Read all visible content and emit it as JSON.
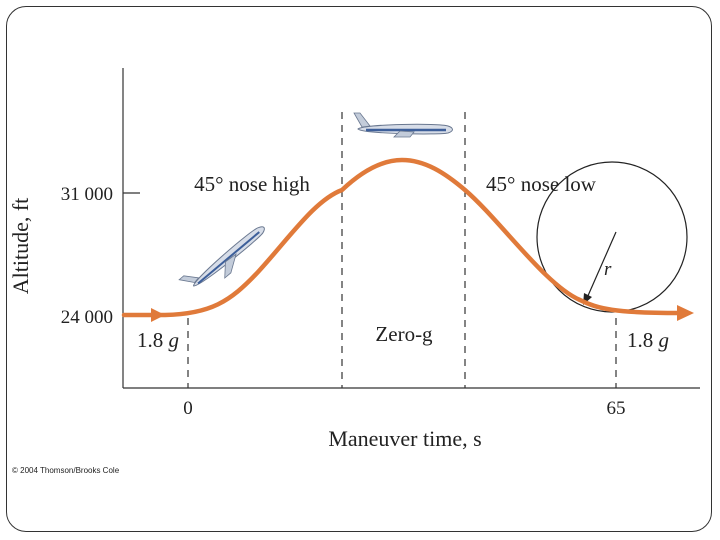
{
  "figure": {
    "ylabel": "Altitude, ft",
    "xlabel": "Maneuver time, s",
    "y_ticks": [
      "31 000",
      "24 000"
    ],
    "x_ticks": [
      "0",
      "65"
    ],
    "phases": {
      "climb": "45° nose high",
      "top": "Zero-g",
      "descent": "45° nose low",
      "entry_load": "1.8",
      "exit_load": "1.8",
      "load_unit": "g"
    },
    "radius_label": "r",
    "copyright": "© 2004 Thomson/Brooks Cole"
  },
  "colors": {
    "trajectory": "#e07a3a",
    "axis": "#333333",
    "text": "#222222"
  }
}
